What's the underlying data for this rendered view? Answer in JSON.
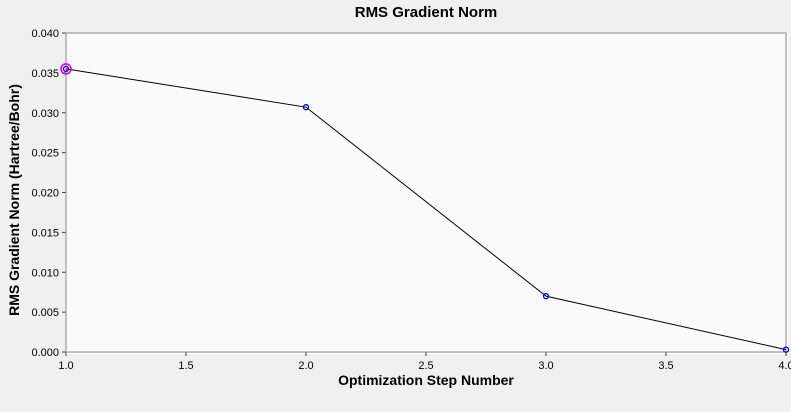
{
  "window": {
    "background_color": "#f0f0f0",
    "plot_background_color": "#fafafa",
    "frame_dark_color": "#8a8a8a",
    "frame_light_color": "#ffffff"
  },
  "chart_data": {
    "type": "line",
    "title": "RMS Gradient Norm",
    "xlabel": "Optimization Step Number",
    "ylabel": "RMS Gradient Norm (Hartree/Bohr)",
    "x": [
      1.0,
      2.0,
      3.0,
      4.0
    ],
    "y": [
      0.0355,
      0.0307,
      0.007,
      0.0003
    ],
    "xlim": [
      1.0,
      4.0
    ],
    "ylim": [
      0.0,
      0.04
    ],
    "x_ticks": [
      1.0,
      1.5,
      2.0,
      2.5,
      3.0,
      3.5,
      4.0
    ],
    "x_tick_labels": [
      "1.0",
      "1.5",
      "2.0",
      "2.5",
      "3.0",
      "3.5",
      "4.0"
    ],
    "y_ticks": [
      0.0,
      0.005,
      0.01,
      0.015,
      0.02,
      0.025,
      0.03,
      0.035,
      0.04
    ],
    "y_tick_labels": [
      "0.000",
      "0.005",
      "0.010",
      "0.015",
      "0.020",
      "0.025",
      "0.030",
      "0.035",
      "0.040"
    ],
    "grid": false,
    "legend": null,
    "line_color": "#000000",
    "marker_color": "#0000bb",
    "tick_color": "#404040",
    "tick_label_color": "#000000",
    "highlight": {
      "index": 0,
      "color": "#dd00dd"
    }
  }
}
